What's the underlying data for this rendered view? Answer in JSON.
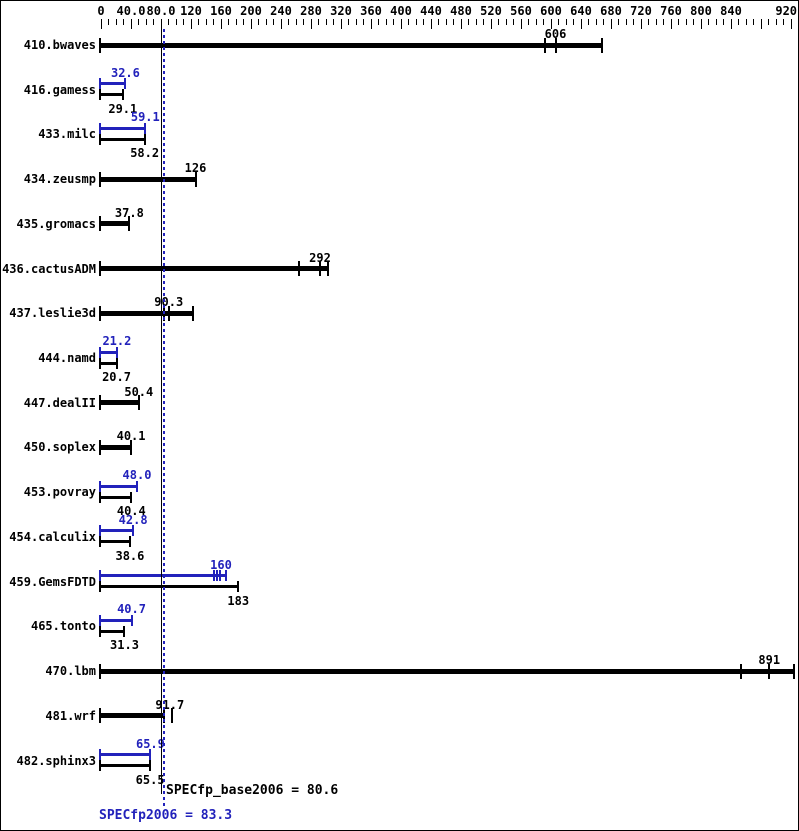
{
  "chart_data": {
    "type": "bar",
    "orientation": "horizontal",
    "title": "",
    "axis": {
      "min": 0,
      "max": 920,
      "minor_tick_step": 10,
      "major_tick_step": 40,
      "tick_labels": [
        "0",
        "40.0",
        "80.0",
        "120",
        "160",
        "200",
        "240",
        "280",
        "320",
        "360",
        "400",
        "440",
        "480",
        "520",
        "560",
        "600",
        "640",
        "680",
        "720",
        "760",
        "800",
        "840",
        "920"
      ],
      "position": "top",
      "grid": false
    },
    "colors": {
      "base": "#000000",
      "peak": "#2222bb"
    },
    "summary": {
      "base_label": "SPECfp_base2006 = 80.6",
      "base_value": 80.6,
      "peak_label": "SPECfp2006 = 83.3",
      "peak_value": 83.3
    },
    "benchmarks": [
      {
        "name": "410.bwaves",
        "base": {
          "label": "606",
          "value": 606,
          "end": 668,
          "runs": [
            592,
            606
          ]
        }
      },
      {
        "name": "416.gamess",
        "peak": {
          "label": "32.6",
          "value": 32.6
        },
        "base": {
          "label": "29.1",
          "value": 29.1
        }
      },
      {
        "name": "433.milc",
        "peak": {
          "label": "59.1",
          "value": 59.1
        },
        "base": {
          "label": "58.2",
          "value": 58.2
        }
      },
      {
        "name": "434.zeusmp",
        "base": {
          "label": "126",
          "value": 126
        }
      },
      {
        "name": "435.gromacs",
        "base": {
          "label": "37.8",
          "value": 37.8
        }
      },
      {
        "name": "436.cactusADM",
        "base": {
          "label": "292",
          "value": 292,
          "end": 302,
          "runs": [
            264,
            292
          ]
        }
      },
      {
        "name": "437.leslie3d",
        "base": {
          "label": "90.3",
          "value": 90.3,
          "end": 122,
          "runs": [
            84,
            90.3
          ]
        }
      },
      {
        "name": "444.namd",
        "peak": {
          "label": "21.2",
          "value": 21.2
        },
        "base": {
          "label": "20.7",
          "value": 20.7
        }
      },
      {
        "name": "447.dealII",
        "base": {
          "label": "50.4",
          "value": 50.4
        }
      },
      {
        "name": "450.soplex",
        "base": {
          "label": "40.1",
          "value": 40.1
        }
      },
      {
        "name": "453.povray",
        "peak": {
          "label": "48.0",
          "value": 48.0
        },
        "base": {
          "label": "40.4",
          "value": 40.4
        }
      },
      {
        "name": "454.calculix",
        "peak": {
          "label": "42.8",
          "value": 42.8
        },
        "base": {
          "label": "38.6",
          "value": 38.6
        }
      },
      {
        "name": "459.GemsFDTD",
        "peak": {
          "label": "160",
          "value": 160,
          "end": 166,
          "runs": [
            150,
            154,
            158
          ]
        },
        "base": {
          "label": "183",
          "value": 183
        }
      },
      {
        "name": "465.tonto",
        "peak": {
          "label": "40.7",
          "value": 40.7
        },
        "base": {
          "label": "31.3",
          "value": 31.3
        }
      },
      {
        "name": "470.lbm",
        "base": {
          "label": "891",
          "value": 891,
          "end": 924,
          "runs": [
            853,
            891
          ]
        }
      },
      {
        "name": "481.wrf",
        "base": {
          "label": "91.7",
          "value": 91.7,
          "end": 84,
          "runs": [
            95
          ]
        }
      },
      {
        "name": "482.sphinx3",
        "peak": {
          "label": "65.9",
          "value": 65.9
        },
        "base": {
          "label": "65.5",
          "value": 65.5
        }
      }
    ]
  }
}
